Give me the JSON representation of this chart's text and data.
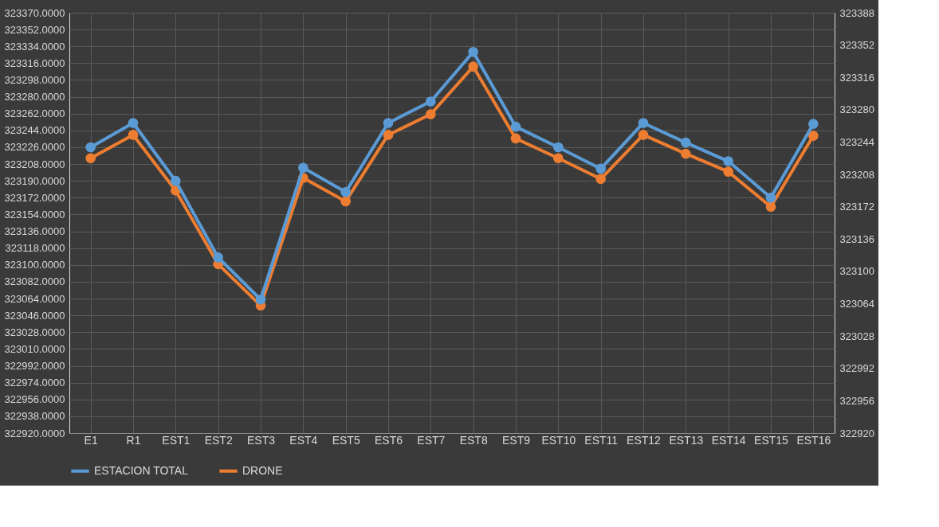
{
  "chart_data": {
    "type": "line",
    "categories": [
      "E1",
      "R1",
      "EST1",
      "EST2",
      "EST3",
      "EST4",
      "EST5",
      "EST6",
      "EST7",
      "EST8",
      "EST9",
      "EST10",
      "EST11",
      "EST12",
      "EST13",
      "EST14",
      "EST15",
      "EST16"
    ],
    "series": [
      {
        "name": "ESTACION TOTAL",
        "color": "#5b9bd5",
        "values": [
          323226,
          323252,
          323190,
          323108,
          323063,
          323204,
          323178,
          323252,
          323275,
          323328,
          323248,
          323226,
          323203,
          323252,
          323231,
          323211,
          323172,
          323251
        ]
      },
      {
        "name": "DRONE",
        "color": "#ed7d31",
        "axis": "y2",
        "values": [
          323226,
          323252,
          323190,
          323108,
          323062,
          323204,
          323178,
          323252,
          323275,
          323328,
          323248,
          323226,
          323203,
          323252,
          323231,
          323211,
          323172,
          323251
        ]
      }
    ],
    "ylim": [
      322920,
      323370
    ],
    "yticks": [
      {
        "value": 322920,
        "label": "322920.0000"
      },
      {
        "value": 322938,
        "label": "322938.0000"
      },
      {
        "value": 322956,
        "label": "322956.0000"
      },
      {
        "value": 322974,
        "label": "322974.0000"
      },
      {
        "value": 322992,
        "label": "322992.0000"
      },
      {
        "value": 323010,
        "label": "323010.0000"
      },
      {
        "value": 323028,
        "label": "323028.0000"
      },
      {
        "value": 323046,
        "label": "323046.0000"
      },
      {
        "value": 323064,
        "label": "323064.0000"
      },
      {
        "value": 323082,
        "label": "323082.0000"
      },
      {
        "value": 323100,
        "label": "323100.0000"
      },
      {
        "value": 323118,
        "label": "323118.0000"
      },
      {
        "value": 323136,
        "label": "323136.0000"
      },
      {
        "value": 323154,
        "label": "323154.0000"
      },
      {
        "value": 323172,
        "label": "323172.0000"
      },
      {
        "value": 323190,
        "label": "323190.0000"
      },
      {
        "value": 323208,
        "label": "323208.0000"
      },
      {
        "value": 323226,
        "label": "323226.0000"
      },
      {
        "value": 323244,
        "label": "323244.0000"
      },
      {
        "value": 323262,
        "label": "323262.0000"
      },
      {
        "value": 323280,
        "label": "323280.0000"
      },
      {
        "value": 323298,
        "label": "323298.0000"
      },
      {
        "value": 323316,
        "label": "323316.0000"
      },
      {
        "value": 323334,
        "label": "323334.0000"
      },
      {
        "value": 323352,
        "label": "323352.0000"
      },
      {
        "value": 323370,
        "label": "323370.0000"
      }
    ],
    "y2lim": [
      322920,
      323388
    ],
    "y2ticks": [
      322920,
      322956,
      322992,
      323028,
      323064,
      323100,
      323136,
      323172,
      323208,
      323244,
      323280,
      323316,
      323352,
      323388
    ],
    "grid": true,
    "legend": "bottom",
    "marker": "circle",
    "line_style": "solid"
  }
}
